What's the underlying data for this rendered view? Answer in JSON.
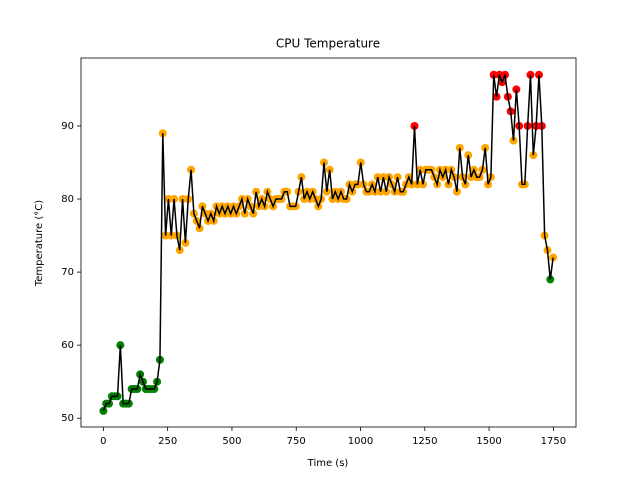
{
  "chart_data": {
    "type": "line",
    "title": "CPU Temperature",
    "x_label": "Time (s)",
    "y_label": "Temperature (°C)",
    "x": [
      0,
      11,
      22,
      33,
      44,
      55,
      66,
      77,
      88,
      99,
      110,
      121,
      132,
      143,
      154,
      165,
      176,
      187,
      198,
      209,
      220,
      231,
      242,
      253,
      264,
      275,
      286,
      297,
      308,
      319,
      330,
      341,
      352,
      363,
      374,
      385,
      396,
      407,
      418,
      429,
      440,
      451,
      462,
      473,
      484,
      495,
      506,
      517,
      528,
      539,
      550,
      561,
      572,
      583,
      594,
      605,
      616,
      627,
      638,
      649,
      660,
      671,
      682,
      693,
      704,
      715,
      726,
      737,
      748,
      759,
      770,
      781,
      792,
      803,
      814,
      825,
      836,
      847,
      858,
      869,
      880,
      891,
      902,
      913,
      924,
      935,
      946,
      957,
      968,
      979,
      990,
      1001,
      1012,
      1023,
      1034,
      1045,
      1056,
      1067,
      1078,
      1089,
      1100,
      1111,
      1122,
      1133,
      1144,
      1155,
      1166,
      1177,
      1188,
      1199,
      1210,
      1221,
      1232,
      1243,
      1254,
      1265,
      1276,
      1287,
      1298,
      1309,
      1320,
      1331,
      1342,
      1353,
      1364,
      1375,
      1386,
      1397,
      1408,
      1419,
      1430,
      1441,
      1452,
      1463,
      1474,
      1485,
      1496,
      1507,
      1518,
      1529,
      1540,
      1551,
      1562,
      1573,
      1584,
      1595,
      1606,
      1617,
      1628,
      1639,
      1650,
      1661,
      1672,
      1683,
      1694,
      1705,
      1716,
      1727,
      1738,
      1749
    ],
    "series": [
      {
        "name": "Temperature",
        "color": "#000000",
        "values": [
          51,
          52,
          52,
          53,
          53,
          53,
          60,
          52,
          52,
          52,
          54,
          54,
          54,
          56,
          55,
          54,
          54,
          54,
          54,
          55,
          58,
          89,
          75,
          80,
          75,
          80,
          75,
          73,
          80,
          74,
          80,
          84,
          78,
          77,
          76,
          79,
          78,
          77,
          78,
          77,
          79,
          78,
          79,
          78,
          79,
          78,
          79,
          78,
          79,
          80,
          78,
          80,
          79,
          78,
          81,
          79,
          80,
          79,
          81,
          80,
          79,
          80,
          80,
          80,
          81,
          81,
          79,
          79,
          79,
          81,
          83,
          80,
          81,
          80,
          81,
          80,
          79,
          80,
          85,
          81,
          84,
          80,
          81,
          80,
          81,
          80,
          80,
          82,
          81,
          82,
          82,
          85,
          82,
          81,
          81,
          82,
          81,
          83,
          81,
          83,
          81,
          83,
          82,
          81,
          83,
          81,
          81,
          82,
          83,
          82,
          90,
          82,
          84,
          82,
          84,
          84,
          84,
          83,
          82,
          84,
          83,
          84,
          82,
          84,
          83,
          81,
          87,
          83,
          82,
          86,
          83,
          84,
          83,
          83,
          84,
          87,
          82,
          83,
          97,
          94,
          97,
          96,
          97,
          94,
          92,
          88,
          95,
          90,
          82,
          82,
          90,
          97,
          86,
          90,
          97,
          90,
          75,
          73,
          69,
          72
        ],
        "marker_colors": [
          "green",
          "green",
          "green",
          "green",
          "green",
          "green",
          "green",
          "green",
          "green",
          "green",
          "green",
          "green",
          "green",
          "green",
          "green",
          "green",
          "green",
          "green",
          "green",
          "green",
          "green",
          "orange",
          "orange",
          "orange",
          "orange",
          "orange",
          "orange",
          "orange",
          "orange",
          "orange",
          "orange",
          "orange",
          "orange",
          "orange",
          "orange",
          "orange",
          "orange",
          "orange",
          "orange",
          "orange",
          "orange",
          "orange",
          "orange",
          "orange",
          "orange",
          "orange",
          "orange",
          "orange",
          "orange",
          "orange",
          "orange",
          "orange",
          "orange",
          "orange",
          "orange",
          "orange",
          "orange",
          "orange",
          "orange",
          "orange",
          "orange",
          "orange",
          "orange",
          "orange",
          "orange",
          "orange",
          "orange",
          "orange",
          "orange",
          "orange",
          "orange",
          "orange",
          "orange",
          "orange",
          "orange",
          "orange",
          "orange",
          "orange",
          "orange",
          "orange",
          "orange",
          "orange",
          "orange",
          "orange",
          "orange",
          "orange",
          "orange",
          "orange",
          "orange",
          "orange",
          "orange",
          "orange",
          "orange",
          "orange",
          "orange",
          "orange",
          "orange",
          "orange",
          "orange",
          "orange",
          "orange",
          "orange",
          "orange",
          "orange",
          "orange",
          "orange",
          "orange",
          "orange",
          "orange",
          "orange",
          "red",
          "orange",
          "orange",
          "orange",
          "orange",
          "orange",
          "orange",
          "orange",
          "orange",
          "orange",
          "orange",
          "orange",
          "orange",
          "orange",
          "orange",
          "orange",
          "orange",
          "orange",
          "orange",
          "orange",
          "orange",
          "orange",
          "orange",
          "orange",
          "orange",
          "orange",
          "orange",
          "orange",
          "red",
          "red",
          "red",
          "red",
          "red",
          "red",
          "red",
          "orange",
          "red",
          "red",
          "orange",
          "orange",
          "red",
          "red",
          "orange",
          "red",
          "red",
          "red",
          "orange",
          "orange",
          "green",
          "orange"
        ]
      }
    ],
    "xlim": [
      -87,
      1838
    ],
    "ylim": [
      48.8,
      99.3
    ],
    "xticks": [
      0,
      250,
      500,
      750,
      1000,
      1250,
      1500,
      1750
    ],
    "yticks": [
      50,
      60,
      70,
      80,
      90
    ]
  }
}
